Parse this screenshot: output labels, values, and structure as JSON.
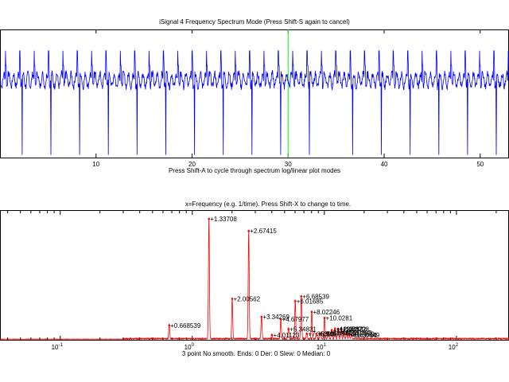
{
  "window": {
    "top_title": "iSignal 4 Frequency Spectrum Mode (Press Shift-S again to cancel)",
    "mid_caption": "Press Shift-A to cycle through spectrum log/linear plot modes",
    "spectrum_title": "x=Frequency (e.g. 1/time). Press Shift-X to change to time.",
    "status_line": "3 point No smooth. Ends: 0    Der: 0    Slew: 0    Median: 0"
  },
  "chart_data": [
    {
      "type": "line",
      "title": "iSignal 4 Frequency Spectrum Mode (Press Shift-S again to cancel)",
      "xlabel": "Press Shift-A to cycle through spectrum log/linear plot modes",
      "ylabel": "",
      "xlim": [
        0,
        53
      ],
      "xticks": [
        10,
        20,
        30,
        40,
        50
      ],
      "xtick_labels": [
        "10",
        "20",
        "30",
        "40",
        "50"
      ],
      "line_color": "#0000ff",
      "cursor_x": 30,
      "cursor_color": "#00ff00",
      "signal": {
        "period": 1.496,
        "phase": 0.8,
        "baseline": 0,
        "up_spike": 0.55,
        "down_spike": -1.4,
        "noise": 0.07,
        "ylim": [
          -1.45,
          0.95
        ]
      }
    },
    {
      "type": "line",
      "title": "x=Frequency (e.g. 1/time). Press Shift-X to change to time.",
      "xlabel": "3 point No smooth. Ends: 0    Der: 0    Slew: 0    Median: 0",
      "xscale": "log",
      "xlim": [
        0.035,
        250
      ],
      "ylim": [
        0,
        1
      ],
      "xtick_labels": [
        "10^-1",
        "10^0",
        "10^1",
        "10^2"
      ],
      "line_color": "#ff0000",
      "label_color": "#000000",
      "peaks": [
        {
          "x": 0.668539,
          "y": 0.12,
          "label": "0.668539"
        },
        {
          "x": 1.33708,
          "y": 1.0,
          "label": "1.33708"
        },
        {
          "x": 2.00562,
          "y": 0.34,
          "label": "2.00562"
        },
        {
          "x": 2.67415,
          "y": 0.9,
          "label": "2.67415"
        },
        {
          "x": 3.34269,
          "y": 0.19,
          "label": "3.34269"
        },
        {
          "x": 4.01123,
          "y": 0.04,
          "label": "4.01123"
        },
        {
          "x": 4.67977,
          "y": 0.17,
          "label": "4.67977"
        },
        {
          "x": 5.34831,
          "y": 0.09,
          "label": "5.34831"
        },
        {
          "x": 6.01685,
          "y": 0.32,
          "label": "6.01685"
        },
        {
          "x": 6.68539,
          "y": 0.36,
          "label": "6.68539"
        },
        {
          "x": 7.35393,
          "y": 0.05,
          "label": "7.35393"
        },
        {
          "x": 8.02246,
          "y": 0.23,
          "label": "8.02246"
        },
        {
          "x": 8.691,
          "y": 0.05,
          "label": "8.691"
        },
        {
          "x": 9.35954,
          "y": 0.05,
          "label": "9.35954"
        },
        {
          "x": 10.0281,
          "y": 0.18,
          "label": "10.0281"
        },
        {
          "x": 10.6966,
          "y": 0.06,
          "label": "10.6966"
        },
        {
          "x": 11.3652,
          "y": 0.08,
          "label": "11.3652"
        },
        {
          "x": 12.0337,
          "y": 0.09,
          "label": "12.0337"
        },
        {
          "x": 12.7022,
          "y": 0.09,
          "label": "12.7022"
        },
        {
          "x": 13.3708,
          "y": 0.09,
          "label": "13.3708"
        },
        {
          "x": 14.0393,
          "y": 0.06,
          "label": "14.0393"
        },
        {
          "x": 14.7079,
          "y": 0.05,
          "label": "14.7079"
        },
        {
          "x": 15.3764,
          "y": 0.04,
          "label": "15.3764"
        },
        {
          "x": 16.0449,
          "y": 0.04,
          "label": "16.0449"
        }
      ]
    }
  ]
}
